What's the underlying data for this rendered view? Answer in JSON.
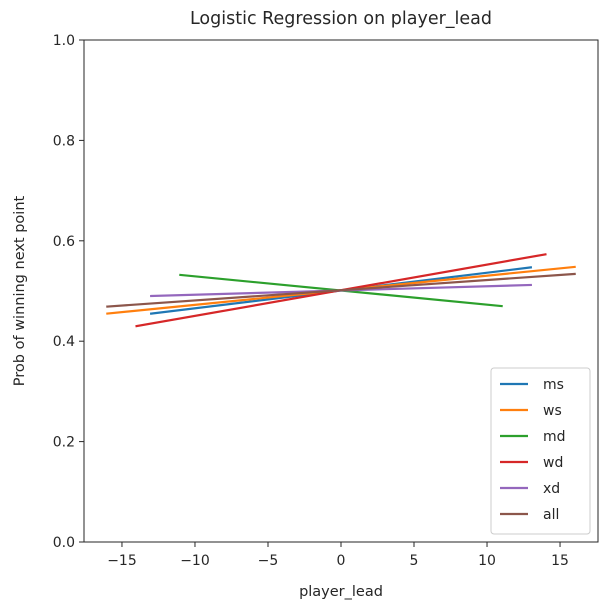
{
  "chart_data": {
    "type": "line",
    "title": "Logistic Regression on player_lead",
    "xlabel": "player_lead",
    "ylabel": "Prob of winning next point",
    "xlim": [
      -17.6,
      17.6
    ],
    "ylim": [
      0.0,
      1.0
    ],
    "xticks": [
      -15,
      -10,
      -5,
      0,
      5,
      10,
      15
    ],
    "xtick_labels": [
      "−15",
      "−10",
      "−5",
      "0",
      "5",
      "10",
      "15"
    ],
    "yticks": [
      0.0,
      0.2,
      0.4,
      0.6,
      0.8,
      1.0
    ],
    "ytick_labels": [
      "0.0",
      "0.2",
      "0.4",
      "0.6",
      "0.8",
      "1.0"
    ],
    "grid": false,
    "legend_position": "lower-right",
    "series": [
      {
        "name": "ms",
        "color": "#1f77b4",
        "x": [
          -13,
          13
        ],
        "y": [
          0.455,
          0.547
        ]
      },
      {
        "name": "ws",
        "color": "#ff7f0e",
        "x": [
          -16,
          16
        ],
        "y": [
          0.455,
          0.548
        ]
      },
      {
        "name": "md",
        "color": "#2ca02c",
        "x": [
          -11,
          11
        ],
        "y": [
          0.532,
          0.47
        ]
      },
      {
        "name": "wd",
        "color": "#d62728",
        "x": [
          -14,
          14
        ],
        "y": [
          0.43,
          0.573
        ]
      },
      {
        "name": "xd",
        "color": "#9467bd",
        "x": [
          -13,
          13
        ],
        "y": [
          0.49,
          0.512
        ]
      },
      {
        "name": "all",
        "color": "#8c564b",
        "x": [
          -16,
          16
        ],
        "y": [
          0.469,
          0.534
        ]
      }
    ]
  }
}
